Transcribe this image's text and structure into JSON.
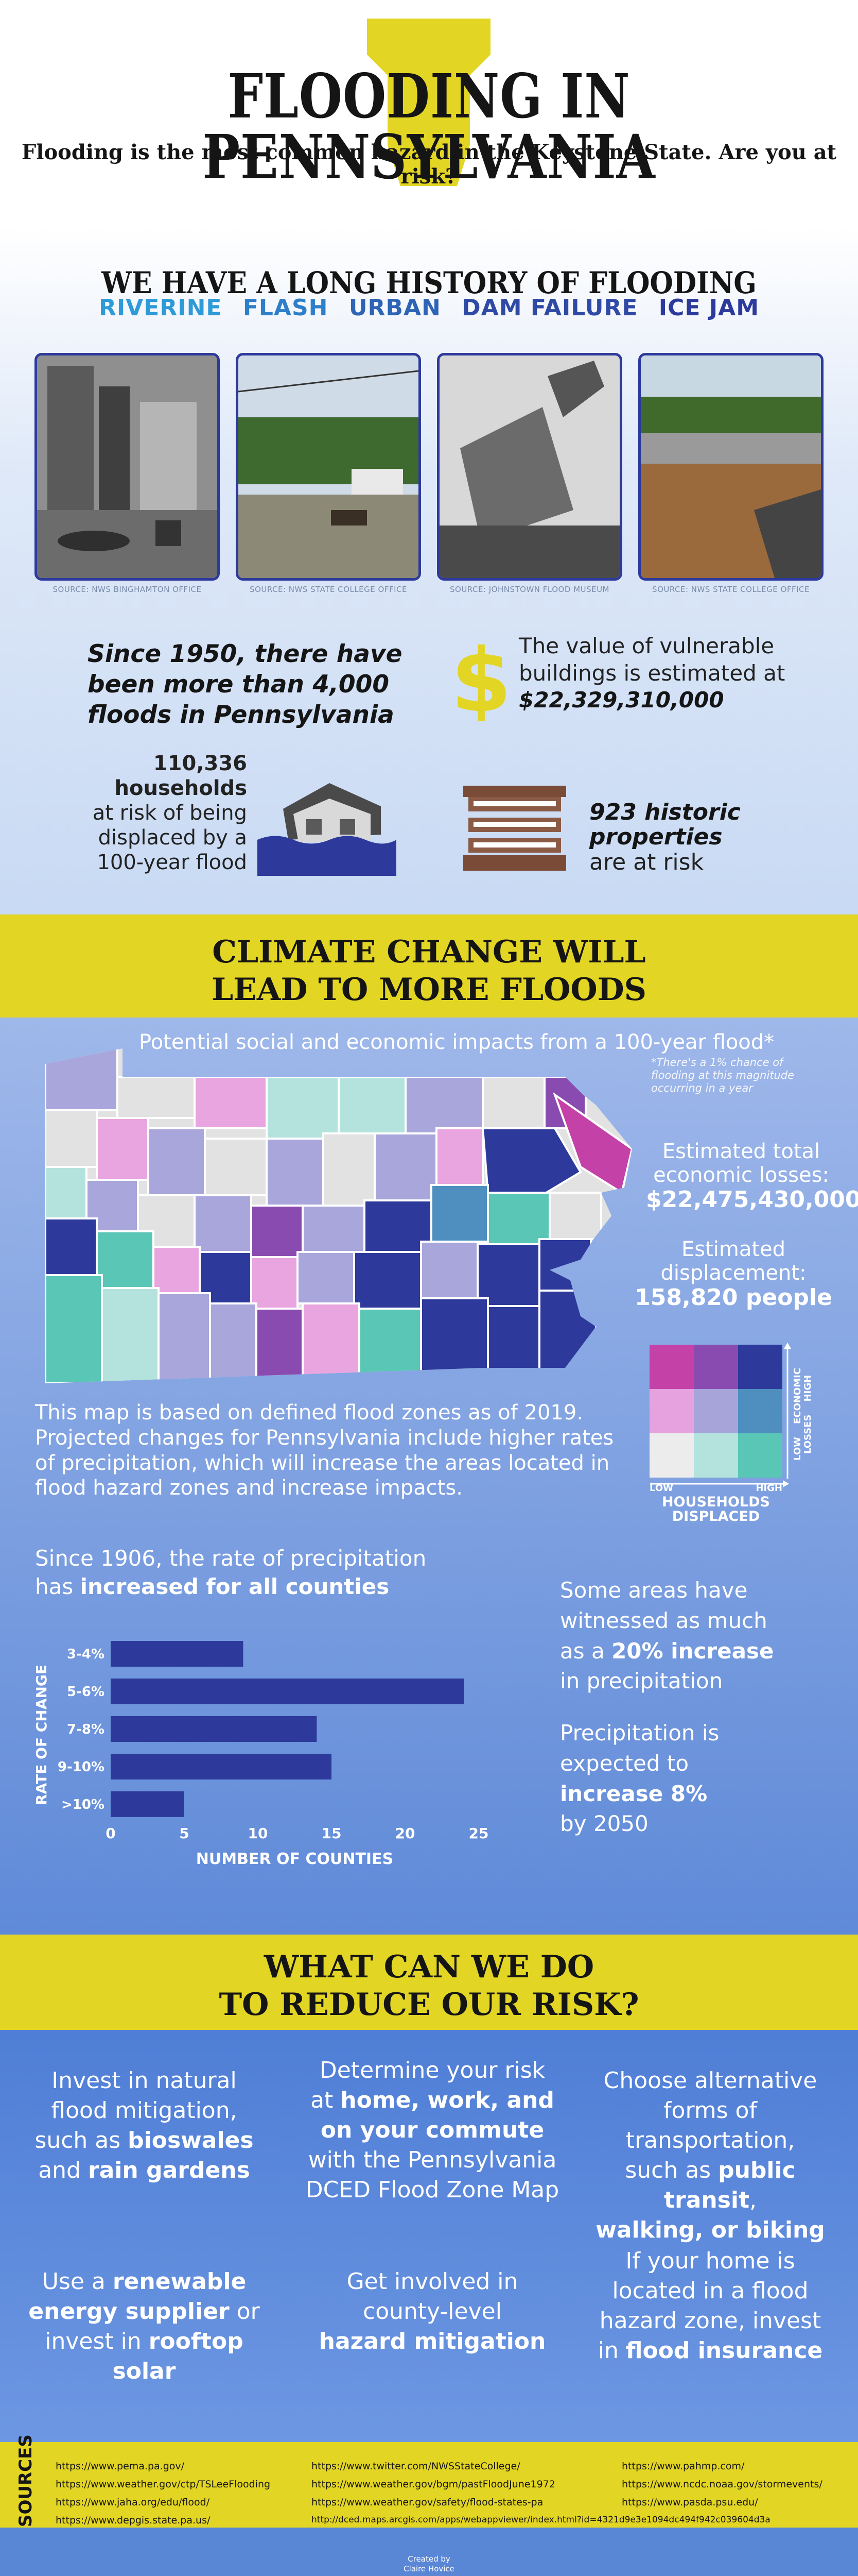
{
  "header": {
    "title": "FLOODING IN PENNSYLVANIA",
    "subtitle": "Flooding is the most common hazard in the Keystone State. Are you at risk?"
  },
  "history": {
    "title": "WE HAVE A LONG HISTORY OF FLOODING",
    "types": [
      {
        "label": "RIVERINE",
        "color": "#2e9ad8"
      },
      {
        "label": "FLASH",
        "color": "#2e7fc9"
      },
      {
        "label": "URBAN",
        "color": "#2e64b5"
      },
      {
        "label": "DAM FAILURE",
        "color": "#2f4aa5"
      },
      {
        "label": "ICE JAM",
        "color": "#2d3a9c"
      }
    ],
    "photos": [
      {
        "caption": "SOURCE: NWS BINGHAMTON OFFICE"
      },
      {
        "caption": "SOURCE: NWS STATE COLLEGE OFFICE"
      },
      {
        "caption": "SOURCE: JOHNSTOWN FLOOD MUSEUM"
      },
      {
        "caption": "SOURCE: NWS STATE COLLEGE OFFICE"
      }
    ]
  },
  "stats": {
    "floods": "Since 1950, there have been more than 4,000 floods in Pennsylvania",
    "value_lead": "The value of vulnerable buildings is estimated at",
    "value_amount": "$22,329,310,000",
    "households_number": "110,336",
    "households_word": "households",
    "households_rest": "at risk of being displaced by a 100-year flood",
    "historic_number": "923 historic",
    "historic_word": "properties",
    "historic_rest": "are at risk"
  },
  "climate": {
    "band_title_1": "CLIMATE CHANGE WILL",
    "band_title_2": "LEAD TO MORE FLOODS",
    "map_title": "Potential social and economic impacts from a 100-year flood*",
    "footnote": "*There's a 1% chance of flooding at this magnitude occurring in a year",
    "losses_label": "Estimated total economic losses:",
    "losses_value": "$22,475,430,000",
    "displacement_label": "Estimated displacement:",
    "displacement_value": "158,820 people",
    "map_note": "This map is based on defined flood zones as of 2019. Projected changes for Pennsylvania include higher rates of precipitation, which will increase the areas located in flood hazard zones and increase impacts.",
    "legend": {
      "colors": [
        [
          "#c441a8",
          "#8a4bb0",
          "#2d3a9c"
        ],
        [
          "#e6a2de",
          "#a7a4da",
          "#4e8fc0"
        ],
        [
          "#ececec",
          "#b3e3dc",
          "#5ac6b6"
        ]
      ],
      "y_high": "HIGH",
      "y_axis": "ECONOMIC",
      "y_axis2": "LOSSES",
      "y_low": "LOW",
      "x_low": "LOW",
      "x_high": "HIGH",
      "x_axis": "HOUSEHOLDS",
      "x_axis2": "DISPLACED"
    },
    "precip_lead": "Since 1906, the rate of precipitation",
    "precip_lead2": "has",
    "precip_bold": "increased for all counties",
    "side_1_a": "Some areas have",
    "side_1_b": "witnessed as much",
    "side_1_c": "as a",
    "side_1_bold": "20% increase",
    "side_1_d": "in precipitation",
    "side_2_a": "Precipitation is",
    "side_2_b": "expected to",
    "side_2_bold": "increase 8%",
    "side_2_c": "by 2050"
  },
  "chart_data": {
    "type": "bar",
    "orientation": "horizontal",
    "categories": [
      "3-4%",
      "5-6%",
      "7-8%",
      "9-10%",
      ">10%"
    ],
    "values": [
      9,
      24,
      14,
      15,
      5
    ],
    "xlabel": "NUMBER OF COUNTIES",
    "ylabel": "RATE OF CHANGE",
    "xlim": [
      0,
      25
    ],
    "xticks": [
      "0",
      "5",
      "10",
      "15",
      "20",
      "25"
    ],
    "bar_color": "#2d3a9c"
  },
  "actions": {
    "band_title_1": "WHAT CAN WE DO",
    "band_title_2": "TO REDUCE OUR RISK?",
    "a1": [
      "Invest in natural",
      "flood mitigation,",
      "such as ",
      "bioswales",
      "and ",
      "rain gardens"
    ],
    "a2": [
      "Determine your risk",
      "at ",
      "home, work, and",
      "on your commute",
      "with the Pennsylvania",
      "DCED Flood Zone Map"
    ],
    "a3": [
      "Choose alternative",
      "forms of transportation,",
      "such as ",
      "public transit",
      ",",
      "walking, or biking"
    ],
    "a4": [
      "Use a ",
      "renewable",
      "energy supplier",
      " or",
      "invest in ",
      "rooftop solar"
    ],
    "a5": [
      "Get involved in",
      "county-level",
      "hazard mitigation"
    ],
    "a6": [
      "If your home is",
      "located in a flood",
      "hazard zone, invest",
      "in ",
      "flood insurance"
    ]
  },
  "sources": {
    "label": "SOURCES",
    "links": [
      "https://www.pema.pa.gov/",
      "https://www.weather.gov/ctp/TSLeeFlooding",
      "https://www.jaha.org/edu/flood/",
      "https://www.depgis.state.pa.us/",
      "https://www.twitter.com/NWSStateCollege/",
      "https://www.weather.gov/bgm/pastFloodJune1972",
      "https://www.weather.gov/safety/flood-states-pa",
      "http://dced.maps.arcgis.com/apps/webappviewer/index.html?id=4321d9e3e1094dc494f942c039604d3a",
      "https://www.pahmp.com/",
      "https://www.ncdc.noaa.gov/stormevents/",
      "https://www.pasda.psu.edu/"
    ]
  },
  "credit": {
    "line1": "Created by",
    "line2": "Claire Hovice"
  }
}
